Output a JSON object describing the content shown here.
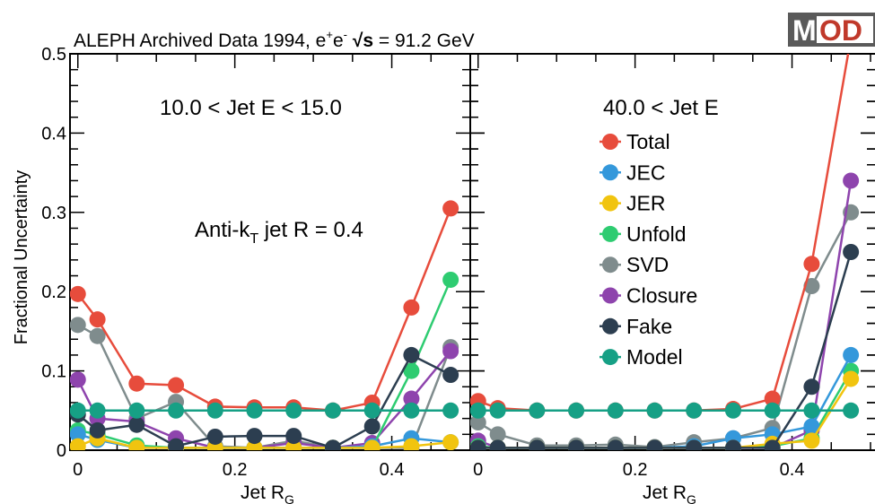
{
  "header": {
    "title_prefix": "ALEPH Archived Data 1994, e",
    "title_sup1": "+",
    "title_mid": "e",
    "title_sup2": "-",
    "title_sqrt": "√s",
    "title_suffix": " = 91.2 GeV"
  },
  "logo": {
    "text_m": "M",
    "text_od": "OD"
  },
  "colors": {
    "Total": "#e74c3c",
    "JEC": "#3498db",
    "JER": "#f1c40f",
    "Unfold": "#2ecc71",
    "SVD": "#7f8c8d",
    "Closure": "#8e44ad",
    "Fake": "#2c3e50",
    "Model": "#16a085"
  },
  "chart_data": [
    {
      "type": "line",
      "panel_label": "10.0 < Jet E < 15.0",
      "extra_label_main": "Anti-k",
      "extra_label_sub": "T",
      "extra_label_rest": " jet R = 0.4",
      "xlabel_main": "Jet R",
      "xlabel_sub": "G",
      "ylabel": "Fractional Uncertainty",
      "xlim": [
        -0.01,
        0.5
      ],
      "ylim": [
        0,
        0.5
      ],
      "x_ticks": [
        "0",
        "0.2",
        "0.4"
      ],
      "y_ticks": [
        "0",
        "0.1",
        "0.2",
        "0.3",
        "0.4",
        "0.5"
      ],
      "x": [
        0.0,
        0.025,
        0.075,
        0.125,
        0.175,
        0.225,
        0.275,
        0.325,
        0.375,
        0.425,
        0.475
      ],
      "series": [
        {
          "name": "SVD",
          "values": [
            0.158,
            0.144,
            0.04,
            0.061,
            0.005,
            0.003,
            0.012,
            0.003,
            0.003,
            0.003,
            0.13
          ]
        },
        {
          "name": "Closure",
          "values": [
            0.089,
            0.04,
            0.036,
            0.015,
            0.003,
            0.003,
            0.009,
            0.003,
            0.009,
            0.065,
            0.125
          ]
        },
        {
          "name": "Unfold",
          "values": [
            0.025,
            0.02,
            0.006,
            0.003,
            0.003,
            0.003,
            0.003,
            0.003,
            0.003,
            0.1,
            0.215
          ]
        },
        {
          "name": "JEC",
          "values": [
            0.02,
            0.013,
            0.003,
            0.003,
            0.003,
            0.003,
            0.003,
            0.003,
            0.005,
            0.015,
            0.01
          ]
        },
        {
          "name": "JER",
          "values": [
            0.005,
            0.015,
            0.003,
            0.003,
            0.003,
            0.003,
            0.003,
            0.003,
            0.003,
            0.005,
            0.01
          ]
        },
        {
          "name": "Fake",
          "values": [
            0.045,
            0.025,
            0.032,
            0.005,
            0.017,
            0.018,
            0.018,
            0.003,
            0.03,
            0.12,
            0.095
          ]
        },
        {
          "name": "Total",
          "values": [
            0.197,
            0.165,
            0.084,
            0.082,
            0.055,
            0.054,
            0.054,
            0.05,
            0.06,
            0.18,
            0.305
          ]
        },
        {
          "name": "Model",
          "values": [
            0.05,
            0.05,
            0.05,
            0.05,
            0.05,
            0.05,
            0.05,
            0.05,
            0.05,
            0.05,
            0.05
          ]
        }
      ]
    },
    {
      "type": "line",
      "panel_label": "40.0 < Jet E",
      "xlabel_main": "Jet R",
      "xlabel_sub": "G",
      "xlim": [
        -0.01,
        0.5
      ],
      "ylim": [
        0,
        0.5
      ],
      "x_ticks": [
        "0",
        "0.2",
        "0.4"
      ],
      "legend_position": "center-right",
      "legend": [
        "Total",
        "JEC",
        "JER",
        "Unfold",
        "SVD",
        "Closure",
        "Fake",
        "Model"
      ],
      "x": [
        0.0,
        0.025,
        0.075,
        0.125,
        0.175,
        0.225,
        0.275,
        0.325,
        0.375,
        0.425,
        0.475
      ],
      "series": [
        {
          "name": "SVD",
          "values": [
            0.035,
            0.02,
            0.006,
            0.006,
            0.007,
            0.004,
            0.01,
            0.015,
            0.028,
            0.207,
            0.3
          ]
        },
        {
          "name": "Closure",
          "values": [
            0.012,
            0.003,
            0.003,
            0.003,
            0.003,
            0.003,
            0.003,
            0.003,
            0.003,
            0.025,
            0.34
          ]
        },
        {
          "name": "Unfold",
          "values": [
            0.005,
            0.003,
            0.003,
            0.003,
            0.003,
            0.003,
            0.003,
            0.003,
            0.005,
            0.015,
            0.1
          ]
        },
        {
          "name": "JEC",
          "values": [
            0.003,
            0.003,
            0.003,
            0.003,
            0.003,
            0.003,
            0.005,
            0.015,
            0.02,
            0.03,
            0.12
          ]
        },
        {
          "name": "JER",
          "values": [
            0.003,
            0.003,
            0.003,
            0.003,
            0.003,
            0.003,
            0.003,
            0.003,
            0.008,
            0.012,
            0.09
          ]
        },
        {
          "name": "Fake",
          "values": [
            0.003,
            0.003,
            0.003,
            0.003,
            0.003,
            0.003,
            0.003,
            0.003,
            0.003,
            0.08,
            0.25
          ]
        },
        {
          "name": "Total",
          "values": [
            0.062,
            0.053,
            0.05,
            0.05,
            0.05,
            0.05,
            0.05,
            0.052,
            0.065,
            0.235,
            0.52
          ]
        },
        {
          "name": "Model",
          "values": [
            0.05,
            0.05,
            0.05,
            0.05,
            0.05,
            0.05,
            0.05,
            0.05,
            0.05,
            0.05,
            0.05
          ]
        }
      ]
    }
  ]
}
